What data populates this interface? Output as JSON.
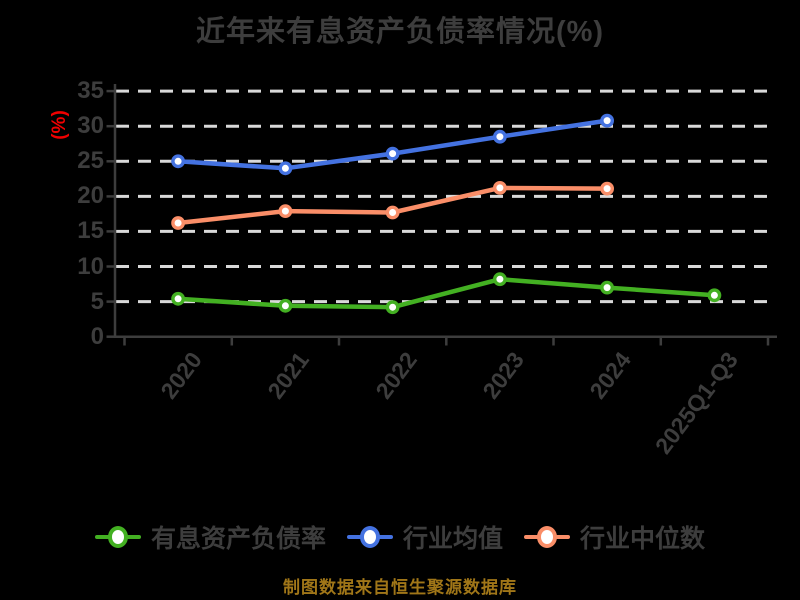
{
  "footer": "制图数据来自恒生聚源数据库",
  "colors": {
    "background": "#000000",
    "title_text": "#3d3d3d",
    "axis": "#3d3d3d",
    "tick_text": "#3d3d3d",
    "grid": "#d9d9d9",
    "ylabel_text": "#f00000",
    "legend_text": "#3d3d3d",
    "footer_text": "#a07618",
    "marker_fill": "#ffffff"
  },
  "chart_data": {
    "type": "line",
    "title": "近年来有息资产负债率情况(%)",
    "ylabel": "(%)",
    "xlabel": "",
    "categories": [
      "2020",
      "2021",
      "2022",
      "2023",
      "2024",
      "2025Q1-Q3"
    ],
    "y_ticks": [
      0,
      5,
      10,
      15,
      20,
      25,
      30,
      35
    ],
    "ylim": [
      0,
      35
    ],
    "grid": "horizontal-dashed",
    "legend_position": "bottom",
    "marker_style": "white-filled-circle",
    "series": [
      {
        "name": "有息资产负债率",
        "color": "#43b022",
        "values": [
          5.4,
          4.4,
          4.2,
          8.2,
          7.0,
          5.9
        ]
      },
      {
        "name": "行业均值",
        "color": "#4472e1",
        "values": [
          25.0,
          24.0,
          26.1,
          28.5,
          30.8,
          null
        ]
      },
      {
        "name": "行业中位数",
        "color": "#fa8e68",
        "values": [
          16.2,
          17.9,
          17.7,
          21.2,
          21.1,
          null
        ]
      }
    ]
  }
}
